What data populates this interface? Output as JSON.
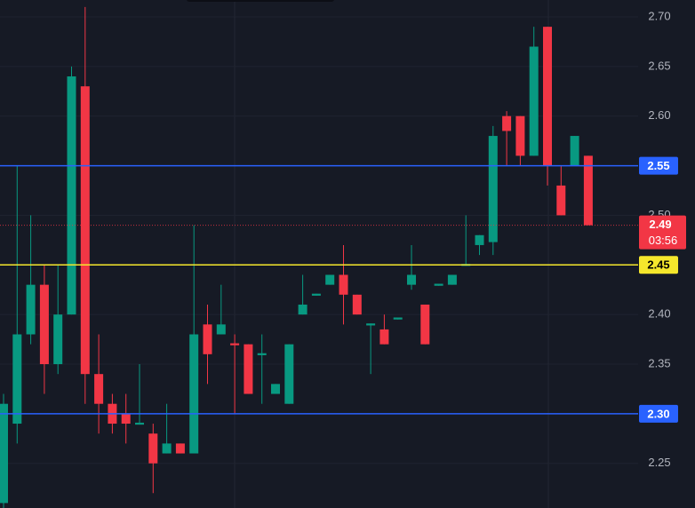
{
  "chart_data": {
    "type": "candlestick",
    "up_color": "#089981",
    "down_color": "#f23645",
    "ylim": [
      2.205,
      2.717
    ],
    "yticks": [
      {
        "value": 2.7,
        "label": "2.70"
      },
      2.65,
      {
        "value": 2.6,
        "label": "2.60"
      },
      2.55,
      {
        "value": 2.5,
        "label": "2.50"
      },
      2.45,
      {
        "value": 2.4,
        "label": "2.40"
      },
      2.35,
      {
        "value": 2.3,
        "label": "2.30"
      },
      2.25
    ],
    "grid": true,
    "series": [
      {
        "open": [
          2.21,
          2.29,
          2.38,
          2.43,
          2.35,
          2.4,
          2.63,
          2.34,
          2.31,
          2.3,
          2.289,
          2.28,
          2.26,
          2.27,
          2.26,
          2.39,
          2.38,
          2.371,
          2.37,
          2.359,
          2.32,
          2.31,
          2.4,
          2.419,
          2.43,
          2.44,
          2.42,
          2.389,
          2.385,
          2.395,
          2.43,
          2.41,
          2.429,
          2.43,
          2.449,
          2.47,
          2.473,
          2.6,
          2.6,
          2.56,
          2.69,
          2.53,
          2.55,
          2.56
        ],
        "high": [
          2.32,
          2.55,
          2.5,
          2.45,
          2.45,
          2.65,
          2.71,
          2.38,
          2.32,
          2.32,
          2.35,
          2.29,
          2.31,
          2.27,
          2.49,
          2.41,
          2.43,
          2.38,
          2.37,
          2.38,
          2.33,
          2.37,
          2.44,
          2.421,
          2.44,
          2.47,
          2.42,
          2.391,
          2.4,
          2.397,
          2.47,
          2.41,
          2.431,
          2.44,
          2.5,
          2.48,
          2.59,
          2.605,
          2.6,
          2.69,
          2.69,
          2.55,
          2.58,
          2.56
        ],
        "low": [
          2.205,
          2.27,
          2.37,
          2.32,
          2.34,
          2.4,
          2.31,
          2.28,
          2.28,
          2.27,
          2.289,
          2.22,
          2.26,
          2.26,
          2.26,
          2.33,
          2.38,
          2.3,
          2.32,
          2.31,
          2.32,
          2.31,
          2.4,
          2.419,
          2.43,
          2.39,
          2.4,
          2.34,
          2.37,
          2.395,
          2.425,
          2.37,
          2.429,
          2.43,
          2.449,
          2.46,
          2.46,
          2.55,
          2.55,
          2.56,
          2.53,
          2.5,
          2.55,
          2.49
        ],
        "close": [
          2.31,
          2.38,
          2.43,
          2.35,
          2.4,
          2.64,
          2.34,
          2.31,
          2.29,
          2.29,
          2.291,
          2.25,
          2.27,
          2.26,
          2.38,
          2.36,
          2.39,
          2.369,
          2.32,
          2.361,
          2.33,
          2.37,
          2.41,
          2.421,
          2.44,
          2.42,
          2.4,
          2.391,
          2.37,
          2.397,
          2.44,
          2.37,
          2.431,
          2.44,
          2.451,
          2.48,
          2.58,
          2.585,
          2.56,
          2.67,
          2.55,
          2.5,
          2.58,
          2.49
        ]
      }
    ],
    "price_lines": [
      {
        "value": 2.55,
        "color": "#2962ff"
      },
      {
        "value": 2.45,
        "color": "#f5e72c"
      },
      {
        "value": 2.3,
        "label": "2.30",
        "color": "#2962ff"
      }
    ],
    "current_price": {
      "value": 2.49,
      "countdown": "03:56",
      "color": "#f23645"
    }
  }
}
